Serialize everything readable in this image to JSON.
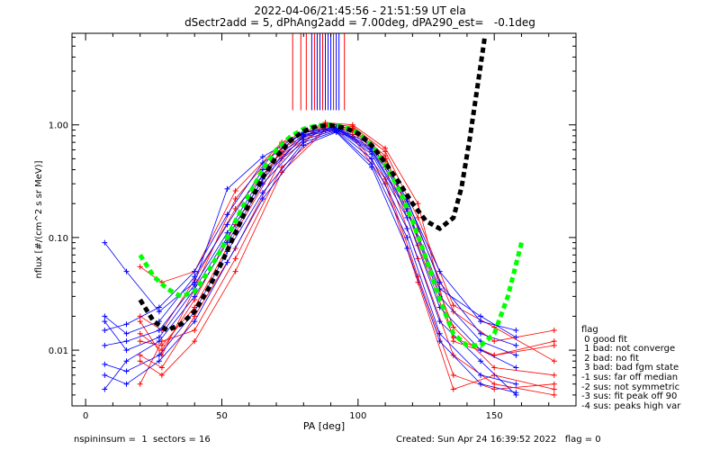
{
  "title_line1": "2022-04-06/21:45:56 - 21:51:59 UT ela",
  "title_line2": "dSectr2add = 5, dPhAng2add = 7.00deg, dPA290_est=   -0.1deg",
  "footer": {
    "left": "nspininsum =  1  sectors = 16",
    "right": "Created: Sun Apr 24 16:39:52 2022   flag = 0"
  },
  "legend": {
    "title": "flag",
    "items": [
      " 0 good fit",
      " 1 bad: not converge",
      " 2 bad: no fit",
      " 3 bad: bad fgm state",
      "-1 sus: far off median",
      "-2 sus: not symmetric",
      "-3 sus: fit peak off 90",
      "-4 sus: peaks high var"
    ]
  },
  "colors": {
    "red_series": "#ff0000",
    "blue_series": "#0000ff",
    "green_fit": "#00ff00",
    "black_fit": "#000000",
    "axes": "#000000"
  },
  "chart_data": {
    "type": "line",
    "xlabel": "PA [deg]",
    "ylabel": "nflux [#/(cm^2 s sr MeV)]",
    "xlim": [
      -5,
      180
    ],
    "ylim": [
      0.0032,
      6.5
    ],
    "yscale": "log",
    "x_ticks": [
      0,
      50,
      100,
      150
    ],
    "y_ticks": [
      {
        "value": 0.01,
        "label": "0.01"
      },
      {
        "value": 0.1,
        "label": "0.10"
      },
      {
        "value": 1.0,
        "label": "1.00"
      }
    ],
    "series": [
      {
        "color": "red",
        "x": [
          20,
          28,
          40,
          55,
          72,
          88,
          98,
          110,
          122,
          135,
          150,
          172
        ],
        "y": [
          0.055,
          0.04,
          0.05,
          0.26,
          0.7,
          1.05,
          1.0,
          0.62,
          0.2,
          0.012,
          0.009,
          0.011
        ]
      },
      {
        "color": "red",
        "x": [
          20,
          28,
          40,
          55,
          72,
          88,
          98,
          110,
          122,
          135,
          150,
          172
        ],
        "y": [
          0.009,
          0.007,
          0.02,
          0.08,
          0.5,
          0.97,
          0.88,
          0.42,
          0.065,
          0.009,
          0.005,
          0.004
        ]
      },
      {
        "color": "red",
        "x": [
          20,
          28,
          40,
          55,
          72,
          88,
          98,
          110,
          122,
          135,
          150,
          172
        ],
        "y": [
          0.014,
          0.01,
          0.028,
          0.13,
          0.62,
          0.99,
          0.94,
          0.53,
          0.1,
          0.016,
          0.007,
          0.006
        ]
      },
      {
        "color": "red",
        "x": [
          20,
          28,
          40,
          55,
          72,
          88,
          98,
          110,
          122,
          135,
          150,
          172
        ],
        "y": [
          0.02,
          0.015,
          0.042,
          0.18,
          0.58,
          1.0,
          0.92,
          0.5,
          0.12,
          0.022,
          0.012,
          0.015
        ]
      },
      {
        "color": "red",
        "x": [
          20,
          28,
          40,
          55,
          72,
          88,
          98,
          110,
          122,
          135,
          150,
          172
        ],
        "y": [
          0.005,
          0.012,
          0.015,
          0.065,
          0.42,
          0.92,
          0.82,
          0.33,
          0.045,
          0.006,
          0.0045,
          0.005
        ]
      },
      {
        "color": "red",
        "x": [
          20,
          28,
          40,
          55,
          72,
          88,
          98,
          110,
          122,
          135,
          150,
          172
        ],
        "y": [
          0.018,
          0.009,
          0.035,
          0.22,
          0.68,
          1.02,
          0.97,
          0.58,
          0.15,
          0.025,
          0.016,
          0.008
        ]
      },
      {
        "color": "red",
        "x": [
          20,
          28,
          40,
          55,
          72,
          88,
          98,
          110,
          122,
          135,
          150,
          172
        ],
        "y": [
          0.008,
          0.006,
          0.012,
          0.05,
          0.38,
          0.9,
          0.78,
          0.3,
          0.04,
          0.0045,
          0.006,
          0.0045
        ]
      },
      {
        "color": "red",
        "x": [
          20,
          28,
          40,
          55,
          72,
          88,
          98,
          110,
          122,
          135,
          150,
          172
        ],
        "y": [
          0.012,
          0.011,
          0.024,
          0.11,
          0.55,
          0.96,
          0.9,
          0.47,
          0.085,
          0.013,
          0.009,
          0.012
        ]
      },
      {
        "color": "blue",
        "x": [
          7,
          15,
          27,
          40,
          52,
          65,
          80,
          92,
          105,
          118,
          130,
          145,
          158
        ],
        "y": [
          0.09,
          0.05,
          0.022,
          0.04,
          0.27,
          0.52,
          0.85,
          0.95,
          0.62,
          0.21,
          0.05,
          0.018,
          0.015
        ]
      },
      {
        "color": "blue",
        "x": [
          7,
          15,
          27,
          40,
          52,
          65,
          80,
          92,
          105,
          118,
          130,
          145,
          158
        ],
        "y": [
          0.02,
          0.014,
          0.018,
          0.045,
          0.13,
          0.4,
          0.82,
          0.93,
          0.58,
          0.17,
          0.03,
          0.012,
          0.009
        ]
      },
      {
        "color": "blue",
        "x": [
          7,
          15,
          27,
          40,
          52,
          65,
          80,
          92,
          105,
          118,
          130,
          145,
          158
        ],
        "y": [
          0.0045,
          0.008,
          0.012,
          0.03,
          0.09,
          0.3,
          0.74,
          0.9,
          0.5,
          0.12,
          0.018,
          0.008,
          0.004
        ]
      },
      {
        "color": "blue",
        "x": [
          7,
          15,
          27,
          40,
          52,
          65,
          80,
          92,
          105,
          118,
          130,
          145,
          158
        ],
        "y": [
          0.0075,
          0.0065,
          0.009,
          0.022,
          0.075,
          0.25,
          0.7,
          0.88,
          0.45,
          0.1,
          0.014,
          0.006,
          0.005
        ]
      },
      {
        "color": "blue",
        "x": [
          7,
          15,
          27,
          40,
          52,
          65,
          80,
          92,
          105,
          118,
          130,
          145,
          158
        ],
        "y": [
          0.011,
          0.012,
          0.015,
          0.038,
          0.11,
          0.36,
          0.78,
          0.92,
          0.55,
          0.15,
          0.024,
          0.01,
          0.007
        ]
      },
      {
        "color": "blue",
        "x": [
          7,
          15,
          27,
          40,
          52,
          65,
          80,
          92,
          105,
          118,
          130,
          145,
          158
        ],
        "y": [
          0.015,
          0.017,
          0.024,
          0.05,
          0.16,
          0.46,
          0.86,
          0.96,
          0.66,
          0.22,
          0.04,
          0.014,
          0.011
        ]
      },
      {
        "color": "blue",
        "x": [
          7,
          15,
          27,
          40,
          52,
          65,
          80,
          92,
          105,
          118,
          130,
          145,
          158
        ],
        "y": [
          0.006,
          0.005,
          0.008,
          0.018,
          0.06,
          0.22,
          0.66,
          0.86,
          0.42,
          0.08,
          0.012,
          0.005,
          0.0042
        ]
      },
      {
        "color": "blue",
        "x": [
          7,
          15,
          27,
          40,
          52,
          65,
          80,
          92,
          105,
          118,
          130,
          145,
          158
        ],
        "y": [
          0.018,
          0.01,
          0.013,
          0.035,
          0.1,
          0.33,
          0.8,
          0.94,
          0.6,
          0.18,
          0.035,
          0.02,
          0.013
        ]
      },
      {
        "color": "green",
        "style": "dashed-fit",
        "x": [
          20,
          25,
          30,
          35,
          40,
          45,
          50,
          55,
          60,
          65,
          70,
          75,
          80,
          85,
          90,
          95,
          100,
          105,
          110,
          115,
          120,
          125,
          130,
          135,
          140,
          145,
          150,
          155,
          160
        ],
        "y": [
          0.07,
          0.045,
          0.035,
          0.03,
          0.033,
          0.05,
          0.08,
          0.14,
          0.24,
          0.4,
          0.6,
          0.78,
          0.92,
          0.99,
          1.0,
          0.96,
          0.85,
          0.66,
          0.44,
          0.27,
          0.14,
          0.065,
          0.028,
          0.014,
          0.011,
          0.011,
          0.014,
          0.03,
          0.09
        ]
      },
      {
        "color": "black",
        "style": "dashed-fit",
        "x": [
          20,
          25,
          30,
          35,
          40,
          45,
          50,
          55,
          60,
          65,
          70,
          75,
          80,
          85,
          90,
          95,
          100,
          105,
          110,
          115,
          120,
          125,
          130,
          135,
          138,
          141,
          143,
          145,
          146.5
        ],
        "y": [
          0.028,
          0.018,
          0.015,
          0.017,
          0.022,
          0.035,
          0.06,
          0.11,
          0.2,
          0.34,
          0.52,
          0.72,
          0.88,
          0.97,
          0.99,
          0.94,
          0.84,
          0.66,
          0.46,
          0.31,
          0.2,
          0.14,
          0.12,
          0.15,
          0.28,
          0.75,
          1.6,
          3.4,
          6.0
        ]
      }
    ]
  }
}
